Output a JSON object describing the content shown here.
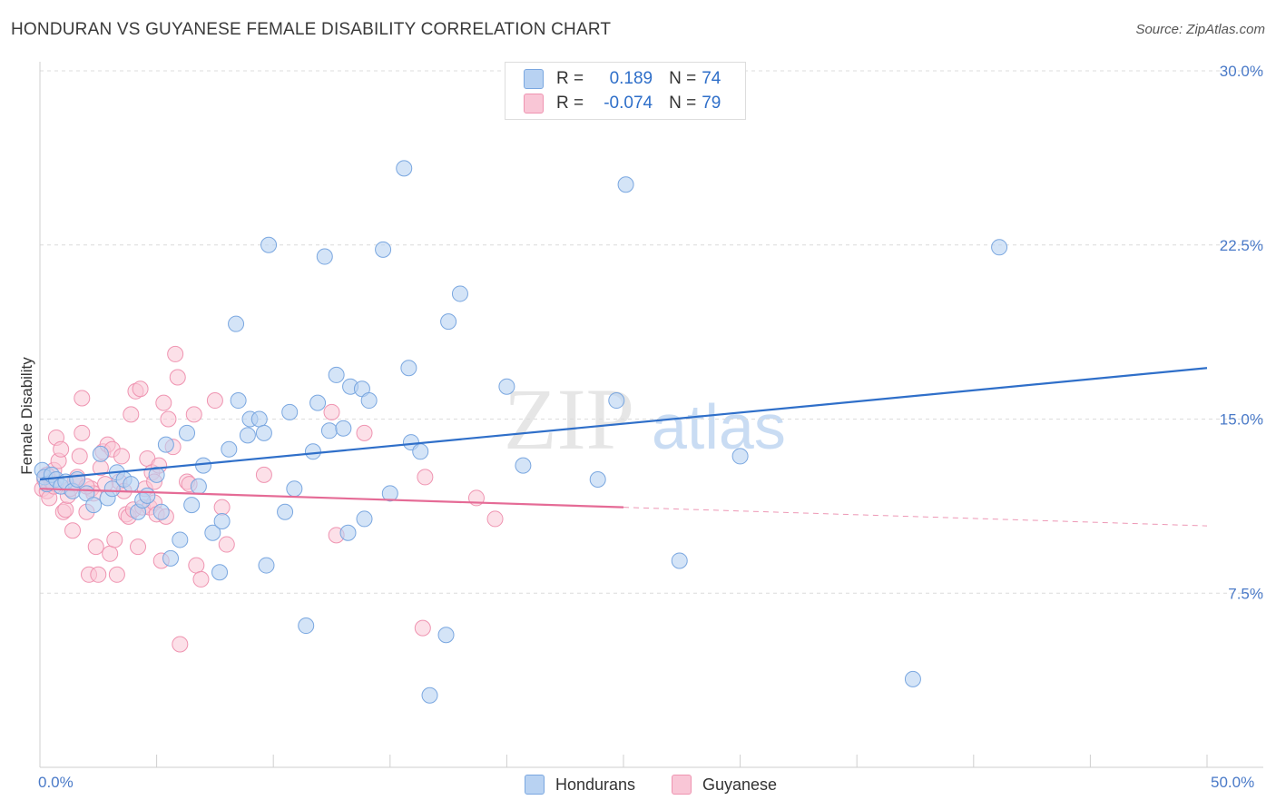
{
  "title": "HONDURAN VS GUYANESE FEMALE DISABILITY CORRELATION CHART",
  "source": "Source: ZipAtlas.com",
  "watermark": {
    "zip": "ZIP",
    "atlas": "atlas"
  },
  "colors": {
    "blue_fill": "#b8d2f2",
    "blue_stroke": "#7aa7e0",
    "blue_line": "#2f6fc9",
    "pink_fill": "#f9c6d6",
    "pink_stroke": "#ef94b1",
    "pink_line": "#e56b96",
    "grid": "#dcdcdc",
    "tick_text": "#4a7ac8"
  },
  "legend": {
    "rows": [
      {
        "r_label": "R =",
        "r_value": "0.189",
        "n_label": "N =",
        "n_value": "74"
      },
      {
        "r_label": "R =",
        "r_value": "-0.074",
        "n_label": "N =",
        "n_value": "79"
      }
    ]
  },
  "bottom_legend": {
    "blue": "Hondurans",
    "pink": "Guyanese"
  },
  "chart_data": {
    "type": "scatter",
    "title": "HONDURAN VS GUYANESE FEMALE DISABILITY CORRELATION CHART",
    "xlabel": "",
    "ylabel": "Female Disability",
    "xlim": [
      0,
      50
    ],
    "ylim": [
      0,
      30
    ],
    "x_tick_labels": [
      "0.0%",
      "50.0%"
    ],
    "y_ticks": [
      7.5,
      15.0,
      22.5,
      30.0
    ],
    "y_tick_labels": [
      "7.5%",
      "15.0%",
      "22.5%",
      "30.0%"
    ],
    "grid": true,
    "legend_position": "top-center",
    "series": [
      {
        "name": "Hondurans",
        "r": 0.189,
        "n": 74,
        "trend": {
          "x": [
            0,
            50
          ],
          "y": [
            12.4,
            17.2
          ]
        },
        "points": [
          [
            0.1,
            12.8
          ],
          [
            0.2,
            12.5
          ],
          [
            0.3,
            12.2
          ],
          [
            0.5,
            12.6
          ],
          [
            0.7,
            12.4
          ],
          [
            0.9,
            12.1
          ],
          [
            1.1,
            12.3
          ],
          [
            1.4,
            11.9
          ],
          [
            1.6,
            12.4
          ],
          [
            2.0,
            11.8
          ],
          [
            2.3,
            11.3
          ],
          [
            2.6,
            13.5
          ],
          [
            2.9,
            11.6
          ],
          [
            3.1,
            12.0
          ],
          [
            3.3,
            12.7
          ],
          [
            3.6,
            12.4
          ],
          [
            3.9,
            12.2
          ],
          [
            4.2,
            11.0
          ],
          [
            4.4,
            11.5
          ],
          [
            4.6,
            11.7
          ],
          [
            5.0,
            12.6
          ],
          [
            5.2,
            11.0
          ],
          [
            5.4,
            13.9
          ],
          [
            5.6,
            9.0
          ],
          [
            6.0,
            9.8
          ],
          [
            6.3,
            14.4
          ],
          [
            6.5,
            11.3
          ],
          [
            6.8,
            12.1
          ],
          [
            7.0,
            13.0
          ],
          [
            7.4,
            10.1
          ],
          [
            7.7,
            8.4
          ],
          [
            7.8,
            10.6
          ],
          [
            8.1,
            13.7
          ],
          [
            8.4,
            19.1
          ],
          [
            8.5,
            15.8
          ],
          [
            8.9,
            14.3
          ],
          [
            9.0,
            15.0
          ],
          [
            9.4,
            15.0
          ],
          [
            9.6,
            14.4
          ],
          [
            9.7,
            8.7
          ],
          [
            9.8,
            22.5
          ],
          [
            10.5,
            11.0
          ],
          [
            10.7,
            15.3
          ],
          [
            10.9,
            12.0
          ],
          [
            11.4,
            6.1
          ],
          [
            11.7,
            13.6
          ],
          [
            11.9,
            15.7
          ],
          [
            12.2,
            22.0
          ],
          [
            12.4,
            14.5
          ],
          [
            12.7,
            16.9
          ],
          [
            13.0,
            14.6
          ],
          [
            13.2,
            10.1
          ],
          [
            13.3,
            16.4
          ],
          [
            13.8,
            16.3
          ],
          [
            13.9,
            10.7
          ],
          [
            14.1,
            15.8
          ],
          [
            14.7,
            22.3
          ],
          [
            15.0,
            11.8
          ],
          [
            15.6,
            25.8
          ],
          [
            15.8,
            17.2
          ],
          [
            15.9,
            14.0
          ],
          [
            16.3,
            13.6
          ],
          [
            16.7,
            3.1
          ],
          [
            17.4,
            5.7
          ],
          [
            17.5,
            19.2
          ],
          [
            18.0,
            20.4
          ],
          [
            20.0,
            16.4
          ],
          [
            20.7,
            13.0
          ],
          [
            23.9,
            12.4
          ],
          [
            24.7,
            15.8
          ],
          [
            25.1,
            25.1
          ],
          [
            27.4,
            8.9
          ],
          [
            37.4,
            3.8
          ],
          [
            41.1,
            22.4
          ],
          [
            30.0,
            13.4
          ]
        ]
      },
      {
        "name": "Guyanese",
        "r": -0.074,
        "n": 79,
        "trend": {
          "x": [
            0,
            25
          ],
          "y": [
            12.0,
            11.2
          ]
        },
        "trend_dashed": {
          "x": [
            25,
            50
          ],
          "y": [
            11.2,
            10.4
          ]
        },
        "points": [
          [
            0.1,
            12.0
          ],
          [
            0.2,
            12.4
          ],
          [
            0.3,
            11.9
          ],
          [
            0.4,
            11.6
          ],
          [
            0.5,
            12.3
          ],
          [
            0.6,
            12.8
          ],
          [
            0.7,
            14.2
          ],
          [
            0.8,
            13.2
          ],
          [
            0.9,
            13.7
          ],
          [
            1.0,
            11.0
          ],
          [
            1.1,
            11.1
          ],
          [
            1.2,
            11.7
          ],
          [
            1.3,
            12.0
          ],
          [
            1.4,
            10.2
          ],
          [
            1.5,
            12.3
          ],
          [
            1.7,
            13.4
          ],
          [
            1.8,
            14.4
          ],
          [
            1.8,
            15.9
          ],
          [
            2.0,
            11.0
          ],
          [
            2.1,
            8.3
          ],
          [
            2.2,
            12.0
          ],
          [
            2.3,
            11.8
          ],
          [
            2.4,
            9.5
          ],
          [
            2.5,
            8.3
          ],
          [
            2.6,
            12.9
          ],
          [
            2.7,
            13.6
          ],
          [
            2.9,
            13.9
          ],
          [
            3.0,
            9.2
          ],
          [
            3.1,
            13.7
          ],
          [
            3.2,
            9.8
          ],
          [
            3.3,
            8.3
          ],
          [
            3.4,
            12.3
          ],
          [
            3.5,
            13.4
          ],
          [
            3.7,
            10.9
          ],
          [
            3.8,
            10.8
          ],
          [
            3.9,
            15.2
          ],
          [
            4.0,
            11.1
          ],
          [
            4.1,
            16.2
          ],
          [
            4.2,
            9.5
          ],
          [
            4.3,
            16.3
          ],
          [
            4.4,
            11.2
          ],
          [
            4.5,
            12.0
          ],
          [
            4.6,
            13.3
          ],
          [
            4.7,
            11.2
          ],
          [
            4.8,
            12.7
          ],
          [
            4.9,
            11.4
          ],
          [
            5.0,
            10.9
          ],
          [
            5.1,
            13.0
          ],
          [
            5.2,
            8.9
          ],
          [
            5.3,
            15.7
          ],
          [
            5.4,
            10.8
          ],
          [
            5.5,
            15.0
          ],
          [
            5.7,
            13.8
          ],
          [
            5.8,
            17.8
          ],
          [
            5.9,
            16.8
          ],
          [
            6.0,
            5.3
          ],
          [
            6.3,
            12.3
          ],
          [
            6.4,
            12.2
          ],
          [
            6.6,
            15.2
          ],
          [
            6.7,
            8.7
          ],
          [
            6.9,
            8.1
          ],
          [
            7.5,
            15.8
          ],
          [
            7.8,
            11.2
          ],
          [
            8.0,
            9.6
          ],
          [
            9.6,
            12.6
          ],
          [
            12.5,
            15.3
          ],
          [
            12.7,
            10.0
          ],
          [
            13.9,
            14.4
          ],
          [
            16.4,
            6.0
          ],
          [
            16.5,
            12.5
          ],
          [
            18.7,
            11.6
          ],
          [
            19.5,
            10.7
          ],
          [
            0.3,
            12.6
          ],
          [
            0.6,
            12.1
          ],
          [
            1.6,
            12.5
          ],
          [
            2.0,
            12.1
          ],
          [
            2.8,
            12.2
          ],
          [
            3.6,
            11.9
          ],
          [
            4.9,
            12.3
          ]
        ]
      }
    ]
  }
}
